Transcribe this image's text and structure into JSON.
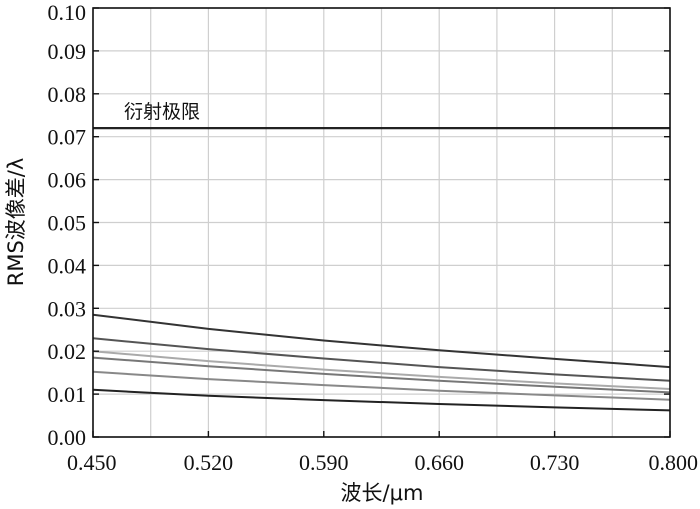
{
  "chart_data": {
    "type": "line",
    "xlabel": "波长/μm",
    "ylabel": "RMS波像差/λ",
    "xlim": [
      0.45,
      0.8
    ],
    "ylim": [
      0,
      0.1
    ],
    "x_ticks": [
      "0.450",
      "0.520",
      "0.590",
      "0.660",
      "0.730",
      "0.800"
    ],
    "x_tick_values": [
      0.45,
      0.52,
      0.59,
      0.66,
      0.73,
      0.8
    ],
    "x_minor_ticks": [
      0.485,
      0.555,
      0.625,
      0.695,
      0.765
    ],
    "y_ticks": [
      "0.00",
      "0.01",
      "0.02",
      "0.03",
      "0.04",
      "0.05",
      "0.06",
      "0.07",
      "0.08",
      "0.09",
      "0.10"
    ],
    "y_tick_values": [
      0,
      0.01,
      0.02,
      0.03,
      0.04,
      0.05,
      0.06,
      0.07,
      0.08,
      0.09,
      0.1
    ],
    "grid": true,
    "x": [
      0.45,
      0.52,
      0.59,
      0.66,
      0.73,
      0.8
    ],
    "series": [
      {
        "values": [
          0.0285,
          0.0252,
          0.0225,
          0.0202,
          0.0182,
          0.0163
        ],
        "color": "#333333"
      },
      {
        "values": [
          0.023,
          0.0205,
          0.0183,
          0.0163,
          0.0146,
          0.0131
        ],
        "color": "#555555"
      },
      {
        "values": [
          0.02,
          0.0177,
          0.0157,
          0.014,
          0.0125,
          0.0112
        ],
        "color": "#aaaaaa"
      },
      {
        "values": [
          0.0185,
          0.0165,
          0.0147,
          0.0131,
          0.0117,
          0.0104
        ],
        "color": "#777777"
      },
      {
        "values": [
          0.0152,
          0.0135,
          0.0121,
          0.0108,
          0.0097,
          0.0087
        ],
        "color": "#888888"
      },
      {
        "values": [
          0.011,
          0.0096,
          0.0086,
          0.0077,
          0.0069,
          0.0062
        ],
        "color": "#222222"
      }
    ],
    "reference_line": {
      "label": "衍射极限",
      "value": 0.072,
      "color": "#222222"
    }
  }
}
